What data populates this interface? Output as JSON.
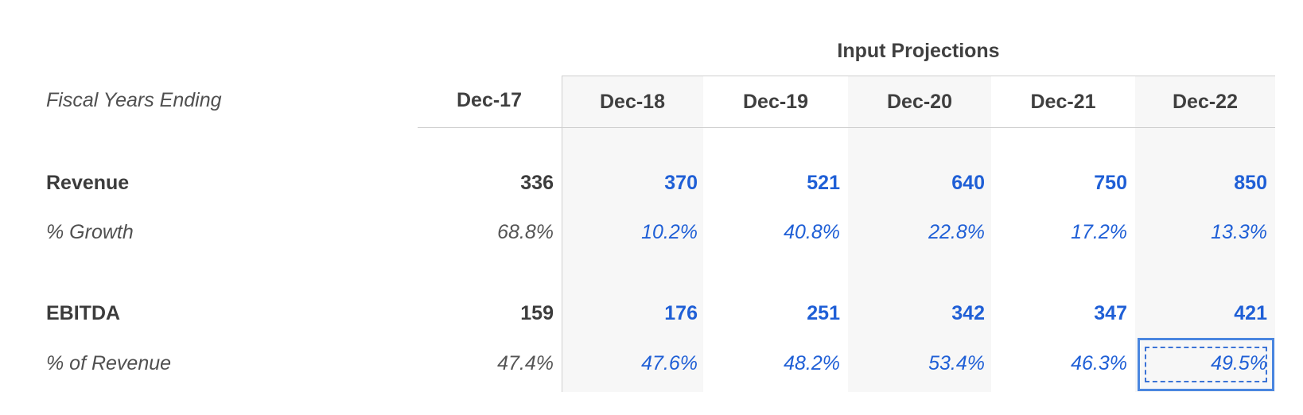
{
  "group_title": "Input Projections",
  "fiscal_label": "Fiscal Years Ending",
  "columns": [
    "Dec-17",
    "Dec-18",
    "Dec-19",
    "Dec-20",
    "Dec-21",
    "Dec-22"
  ],
  "rows": [
    {
      "label": "Revenue",
      "values": [
        "336",
        "370",
        "521",
        "640",
        "750",
        "850"
      ]
    },
    {
      "label": "% Growth",
      "values": [
        "68.8%",
        "10.2%",
        "40.8%",
        "22.8%",
        "17.2%",
        "13.3%"
      ]
    },
    {
      "label": "EBITDA",
      "values": [
        "159",
        "176",
        "251",
        "342",
        "347",
        "421"
      ]
    },
    {
      "label": "% of Revenue",
      "values": [
        "47.4%",
        "47.6%",
        "48.2%",
        "53.4%",
        "46.3%",
        "49.5%"
      ]
    }
  ],
  "colors": {
    "input_blue": "#1f5fd6",
    "historical_text": "#3c3c3c",
    "selection_border": "#4a86e0",
    "shade": "#f7f7f7"
  },
  "selected_cell": {
    "row": "% of Revenue",
    "column": "Dec-22"
  }
}
